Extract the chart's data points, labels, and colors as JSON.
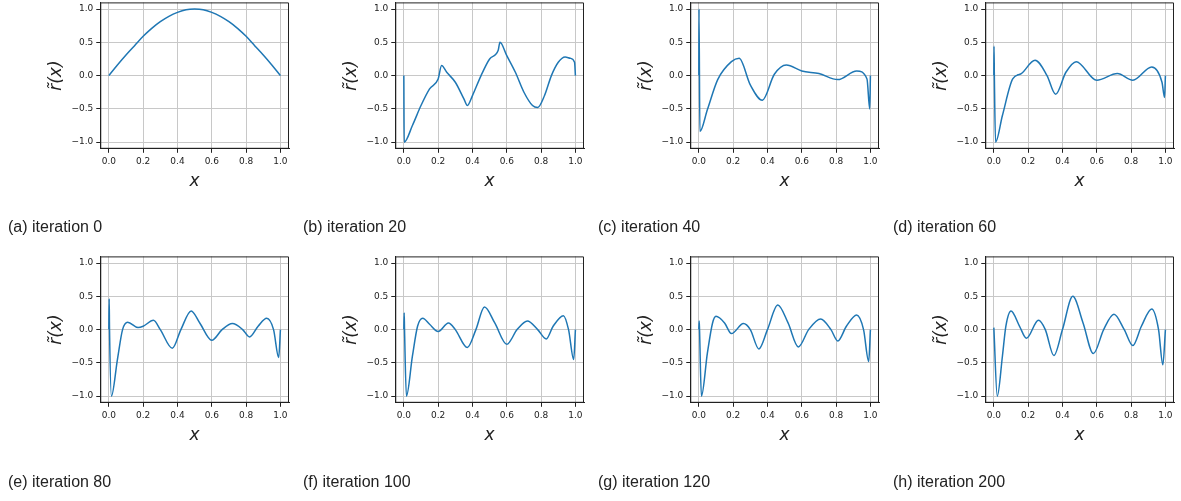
{
  "chart_data": [
    {
      "type": "line",
      "title": "(a) iteration 0",
      "xlabel": "x",
      "ylabel": "r̃(x)",
      "grid": true,
      "xlim": [
        -0.05,
        1.05
      ],
      "ylim": [
        -1.1,
        1.1
      ],
      "xticks": [
        {
          "value": 0,
          "label": "0.0"
        },
        {
          "value": 0.2,
          "label": "0.2"
        },
        {
          "value": 0.4,
          "label": "0.4"
        },
        {
          "value": 0.6,
          "label": "0.6"
        },
        {
          "value": 0.8,
          "label": "0.8"
        },
        {
          "value": 1,
          "label": "1.0"
        }
      ],
      "yticks": [
        {
          "value": -1,
          "label": "−1.0"
        },
        {
          "value": -0.5,
          "label": "−0.5"
        },
        {
          "value": 0,
          "label": "0.0"
        },
        {
          "value": 0.5,
          "label": "0.5"
        },
        {
          "value": 1,
          "label": "1.0"
        }
      ],
      "series": [
        {
          "color": "#1f77b4",
          "x": [
            0,
            0.05,
            0.1,
            0.15,
            0.2,
            0.25,
            0.3,
            0.35,
            0.4,
            0.45,
            0.5,
            0.55,
            0.6,
            0.65,
            0.7,
            0.75,
            0.8,
            0.85,
            0.9,
            0.95,
            1
          ],
          "values": [
            0,
            0.16,
            0.31,
            0.45,
            0.59,
            0.71,
            0.81,
            0.89,
            0.95,
            0.99,
            1,
            0.99,
            0.95,
            0.89,
            0.81,
            0.71,
            0.59,
            0.45,
            0.31,
            0.16,
            0
          ]
        }
      ]
    },
    {
      "type": "line",
      "title": "(b) iteration 20",
      "xlabel": "x",
      "ylabel": "r̃(x)",
      "grid": true,
      "xlim": [
        -0.05,
        1.05
      ],
      "ylim": [
        -1.1,
        1.1
      ],
      "xticks": [
        {
          "value": 0,
          "label": "0.0"
        },
        {
          "value": 0.2,
          "label": "0.2"
        },
        {
          "value": 0.4,
          "label": "0.4"
        },
        {
          "value": 0.6,
          "label": "0.6"
        },
        {
          "value": 0.8,
          "label": "0.8"
        },
        {
          "value": 1,
          "label": "1.0"
        }
      ],
      "yticks": [
        {
          "value": -1,
          "label": "−1.0"
        },
        {
          "value": -0.5,
          "label": "−0.5"
        },
        {
          "value": 0,
          "label": "0.0"
        },
        {
          "value": 0.5,
          "label": "0.5"
        },
        {
          "value": 1,
          "label": "1.0"
        }
      ],
      "series": [
        {
          "color": "#1f77b4",
          "x": [
            0,
            0.002,
            0.05,
            0.1,
            0.15,
            0.2,
            0.22,
            0.25,
            0.3,
            0.35,
            0.37,
            0.4,
            0.45,
            0.5,
            0.55,
            0.56,
            0.6,
            0.65,
            0.7,
            0.75,
            0.78,
            0.82,
            0.86,
            0.9,
            0.94,
            0.97,
            0.995,
            1
          ],
          "values": [
            0,
            -1,
            -0.75,
            -0.45,
            -0.2,
            -0.05,
            0.15,
            0.05,
            -0.1,
            -0.35,
            -0.45,
            -0.3,
            0,
            0.25,
            0.38,
            0.5,
            0.3,
            0.05,
            -0.25,
            -0.45,
            -0.48,
            -0.3,
            0,
            0.2,
            0.28,
            0.26,
            0.2,
            0
          ]
        }
      ]
    },
    {
      "type": "line",
      "title": "(c) iteration 40",
      "xlabel": "x",
      "ylabel": "r̃(x)",
      "grid": true,
      "xlim": [
        -0.05,
        1.05
      ],
      "ylim": [
        -1.1,
        1.1
      ],
      "xticks": [
        {
          "value": 0,
          "label": "0.0"
        },
        {
          "value": 0.2,
          "label": "0.2"
        },
        {
          "value": 0.4,
          "label": "0.4"
        },
        {
          "value": 0.6,
          "label": "0.6"
        },
        {
          "value": 0.8,
          "label": "0.8"
        },
        {
          "value": 1,
          "label": "1.0"
        }
      ],
      "yticks": [
        {
          "value": -1,
          "label": "−1.0"
        },
        {
          "value": -0.5,
          "label": "−0.5"
        },
        {
          "value": 0,
          "label": "0.0"
        },
        {
          "value": 0.5,
          "label": "0.5"
        },
        {
          "value": 1,
          "label": "1.0"
        }
      ],
      "series": [
        {
          "color": "#1f77b4",
          "x": [
            0,
            0.001,
            0.006,
            0.05,
            0.11,
            0.19,
            0.235,
            0.3,
            0.37,
            0.44,
            0.51,
            0.6,
            0.7,
            0.81,
            0.92,
            0.98,
            0.996,
            1
          ],
          "values": [
            0,
            1,
            -0.84,
            -0.51,
            -0.06,
            0.21,
            0.26,
            -0.14,
            -0.37,
            0.02,
            0.16,
            0.07,
            0.03,
            -0.06,
            0.07,
            -0.05,
            -0.5,
            0
          ]
        }
      ]
    },
    {
      "type": "line",
      "title": "(d) iteration 60",
      "xlabel": "x",
      "ylabel": "r̃(x)",
      "grid": true,
      "xlim": [
        -0.05,
        1.05
      ],
      "ylim": [
        -1.1,
        1.1
      ],
      "xticks": [
        {
          "value": 0,
          "label": "0.0"
        },
        {
          "value": 0.2,
          "label": "0.2"
        },
        {
          "value": 0.4,
          "label": "0.4"
        },
        {
          "value": 0.6,
          "label": "0.6"
        },
        {
          "value": 0.8,
          "label": "0.8"
        },
        {
          "value": 1,
          "label": "1.0"
        }
      ],
      "yticks": [
        {
          "value": -1,
          "label": "−1.0"
        },
        {
          "value": -0.5,
          "label": "−0.5"
        },
        {
          "value": 0,
          "label": "0.0"
        },
        {
          "value": 0.5,
          "label": "0.5"
        },
        {
          "value": 1,
          "label": "1.0"
        }
      ],
      "series": [
        {
          "color": "#1f77b4",
          "x": [
            0,
            0.001,
            0.003,
            0.01,
            0.05,
            0.11,
            0.16,
            0.24,
            0.31,
            0.36,
            0.42,
            0.48,
            0.6,
            0.72,
            0.81,
            0.92,
            0.98,
            0.995,
            1
          ],
          "values": [
            0,
            0.44,
            0,
            -1,
            -0.6,
            -0.05,
            0.03,
            0.23,
            0,
            -0.28,
            0.05,
            0.21,
            -0.07,
            0.03,
            -0.07,
            0.13,
            -0.1,
            -0.33,
            0
          ]
        }
      ]
    },
    {
      "type": "line",
      "title": "(e) iteration 80",
      "xlabel": "x",
      "ylabel": "r̃(x)",
      "grid": true,
      "xlim": [
        -0.05,
        1.05
      ],
      "ylim": [
        -1.1,
        1.1
      ],
      "xticks": [
        {
          "value": 0,
          "label": "0.0"
        },
        {
          "value": 0.2,
          "label": "0.2"
        },
        {
          "value": 0.4,
          "label": "0.4"
        },
        {
          "value": 0.6,
          "label": "0.6"
        },
        {
          "value": 0.8,
          "label": "0.8"
        },
        {
          "value": 1,
          "label": "1.0"
        }
      ],
      "yticks": [
        {
          "value": -1,
          "label": "−1.0"
        },
        {
          "value": -0.5,
          "label": "−0.5"
        },
        {
          "value": 0,
          "label": "0.0"
        },
        {
          "value": 0.5,
          "label": "0.5"
        },
        {
          "value": 1,
          "label": "1.0"
        }
      ],
      "series": [
        {
          "color": "#1f77b4",
          "x": [
            0,
            0.002,
            0.004,
            0.015,
            0.05,
            0.08,
            0.11,
            0.17,
            0.2,
            0.26,
            0.3,
            0.37,
            0.42,
            0.48,
            0.53,
            0.6,
            0.66,
            0.72,
            0.78,
            0.82,
            0.87,
            0.92,
            0.96,
            0.99,
            1
          ],
          "values": [
            0,
            0.46,
            0,
            -1,
            -0.45,
            0,
            0.11,
            0.03,
            0.05,
            0.14,
            0,
            -0.28,
            0,
            0.28,
            0.1,
            -0.16,
            0,
            0.09,
            0,
            -0.11,
            0.05,
            0.17,
            0,
            -0.42,
            0
          ]
        }
      ]
    },
    {
      "type": "line",
      "title": "(f) iteration 100",
      "xlabel": "x",
      "ylabel": "r̃(x)",
      "grid": true,
      "xlim": [
        -0.05,
        1.05
      ],
      "ylim": [
        -1.1,
        1.1
      ],
      "xticks": [
        {
          "value": 0,
          "label": "0.0"
        },
        {
          "value": 0.2,
          "label": "0.2"
        },
        {
          "value": 0.4,
          "label": "0.4"
        },
        {
          "value": 0.6,
          "label": "0.6"
        },
        {
          "value": 0.8,
          "label": "0.8"
        },
        {
          "value": 1,
          "label": "1.0"
        }
      ],
      "yticks": [
        {
          "value": -1,
          "label": "−1.0"
        },
        {
          "value": -0.5,
          "label": "−0.5"
        },
        {
          "value": 0,
          "label": "0.0"
        },
        {
          "value": 0.5,
          "label": "0.5"
        },
        {
          "value": 1,
          "label": "1.0"
        }
      ],
      "series": [
        {
          "color": "#1f77b4",
          "x": [
            0,
            0.002,
            0.004,
            0.015,
            0.05,
            0.08,
            0.11,
            0.15,
            0.2,
            0.26,
            0.3,
            0.37,
            0.42,
            0.47,
            0.53,
            0.6,
            0.66,
            0.72,
            0.78,
            0.83,
            0.87,
            0.93,
            0.96,
            0.99,
            1
          ],
          "values": [
            0,
            0.25,
            0,
            -1,
            -0.4,
            0.05,
            0.17,
            0.08,
            -0.03,
            0.1,
            0,
            -0.27,
            0,
            0.34,
            0.1,
            -0.22,
            0,
            0.13,
            0,
            -0.14,
            0.05,
            0.21,
            0,
            -0.45,
            0
          ]
        }
      ]
    },
    {
      "type": "line",
      "title": "(g) iteration 120",
      "xlabel": "x",
      "ylabel": "r̃(x)",
      "grid": true,
      "xlim": [
        -0.05,
        1.05
      ],
      "ylim": [
        -1.1,
        1.1
      ],
      "xticks": [
        {
          "value": 0,
          "label": "0.0"
        },
        {
          "value": 0.2,
          "label": "0.2"
        },
        {
          "value": 0.4,
          "label": "0.4"
        },
        {
          "value": 0.6,
          "label": "0.6"
        },
        {
          "value": 0.8,
          "label": "0.8"
        },
        {
          "value": 1,
          "label": "1.0"
        }
      ],
      "yticks": [
        {
          "value": -1,
          "label": "−1.0"
        },
        {
          "value": -0.5,
          "label": "−0.5"
        },
        {
          "value": 0,
          "label": "0.0"
        },
        {
          "value": 0.5,
          "label": "0.5"
        },
        {
          "value": 1,
          "label": "1.0"
        }
      ],
      "series": [
        {
          "color": "#1f77b4",
          "x": [
            0,
            0.002,
            0.004,
            0.015,
            0.05,
            0.08,
            0.1,
            0.15,
            0.19,
            0.26,
            0.3,
            0.35,
            0.4,
            0.46,
            0.52,
            0.58,
            0.64,
            0.71,
            0.77,
            0.81,
            0.86,
            0.92,
            0.96,
            0.99,
            1
          ],
          "values": [
            0,
            0.13,
            0,
            -1,
            -0.35,
            0.1,
            0.2,
            0.1,
            -0.06,
            0.09,
            0,
            -0.29,
            0,
            0.37,
            0.1,
            -0.26,
            0,
            0.16,
            0,
            -0.17,
            0.05,
            0.22,
            0,
            -0.48,
            0
          ]
        }
      ]
    },
    {
      "type": "line",
      "title": "(h) iteration 200",
      "xlabel": "x",
      "ylabel": "r̃(x)",
      "grid": true,
      "xlim": [
        -0.05,
        1.05
      ],
      "ylim": [
        -1.1,
        1.1
      ],
      "xticks": [
        {
          "value": 0,
          "label": "0.0"
        },
        {
          "value": 0.2,
          "label": "0.2"
        },
        {
          "value": 0.4,
          "label": "0.4"
        },
        {
          "value": 0.6,
          "label": "0.6"
        },
        {
          "value": 0.8,
          "label": "0.8"
        },
        {
          "value": 1,
          "label": "1.0"
        }
      ],
      "yticks": [
        {
          "value": -1,
          "label": "−1.0"
        },
        {
          "value": -0.5,
          "label": "−0.5"
        },
        {
          "value": 0,
          "label": "0.0"
        },
        {
          "value": 0.5,
          "label": "0.5"
        },
        {
          "value": 1,
          "label": "1.0"
        }
      ],
      "series": [
        {
          "color": "#1f77b4",
          "x": [
            0,
            0.02,
            0.05,
            0.07,
            0.1,
            0.15,
            0.19,
            0.26,
            0.3,
            0.35,
            0.4,
            0.46,
            0.52,
            0.58,
            0.64,
            0.7,
            0.76,
            0.81,
            0.86,
            0.92,
            0.96,
            0.985,
            1
          ],
          "values": [
            0.03,
            -1,
            -0.4,
            0.05,
            0.28,
            0.05,
            -0.13,
            0.14,
            0,
            -0.39,
            0,
            0.5,
            0.1,
            -0.36,
            0,
            0.23,
            0,
            -0.24,
            0.05,
            0.31,
            0,
            -0.53,
            0
          ]
        }
      ]
    }
  ]
}
